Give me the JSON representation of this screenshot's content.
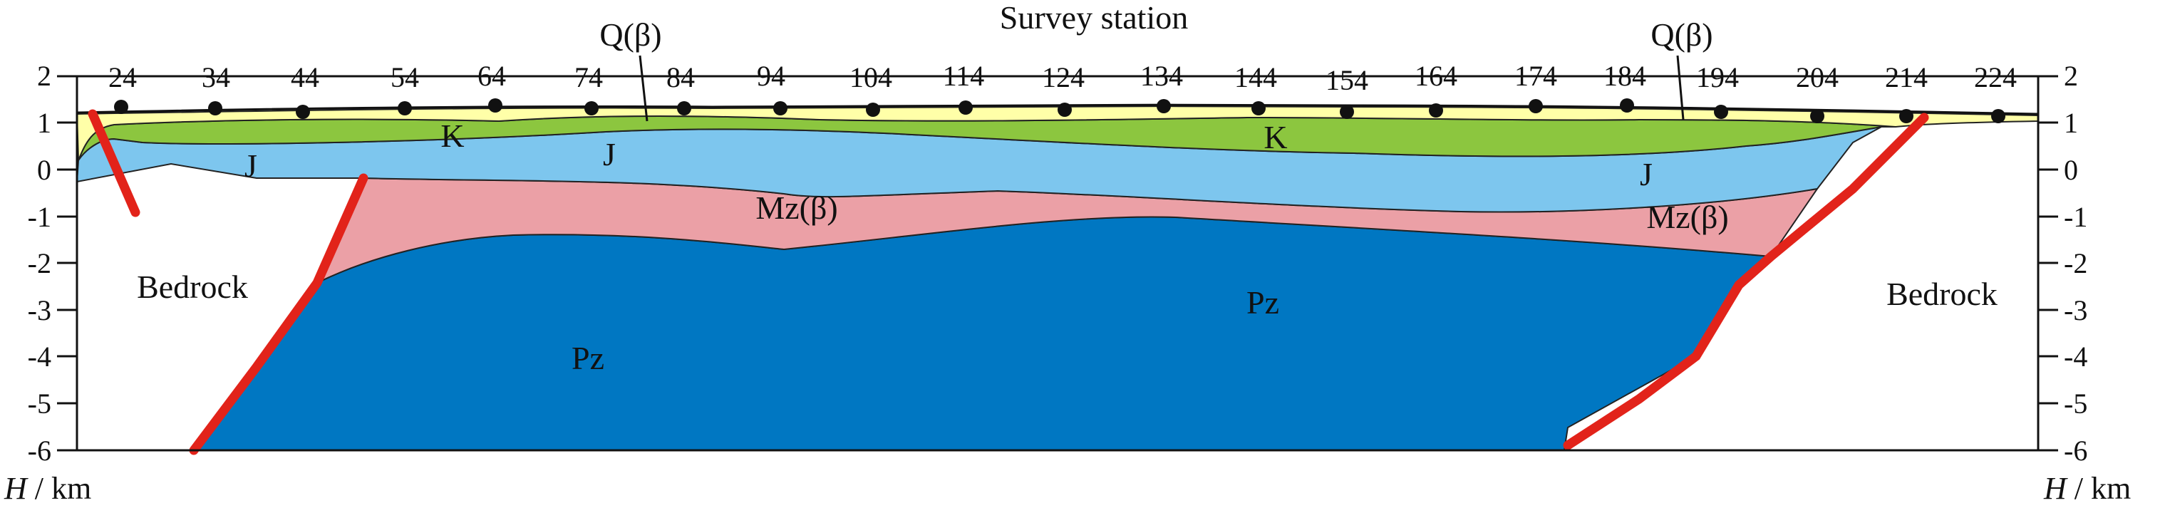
{
  "title": "Survey station",
  "y_axis": {
    "left_label_var": "H",
    "left_label_unit": " / km",
    "right_label_var": "H",
    "right_label_unit": " / km",
    "ticks": [
      "2",
      "1",
      "0",
      "-1",
      "-2",
      "-3",
      "-4",
      "-5",
      "-6"
    ],
    "range": [
      -6,
      2
    ]
  },
  "stations": [
    "24",
    "34",
    "44",
    "54",
    "64",
    "74",
    "84",
    "94",
    "104",
    "114",
    "124",
    "134",
    "144",
    "154",
    "164",
    "174",
    "184",
    "194",
    "204",
    "214",
    "224"
  ],
  "layers": {
    "quaternary": "Q(β)",
    "quaternary_right": "Q(β)",
    "cretaceous_left": "K",
    "cretaceous_right": "K",
    "jurassic_left": "J",
    "jurassic_mid": "J",
    "jurassic_right": "J",
    "mesozoic_mid": "Mz(β)",
    "mesozoic_right": "Mz(β)",
    "paleozoic_left": "Pz",
    "paleozoic_mid": "Pz",
    "bedrock_left": "Bedrock",
    "bedrock_right": "Bedrock"
  },
  "colors": {
    "quaternary": "#ffffa8",
    "cretaceous": "#8cc63f",
    "jurassic": "#7dc6ee",
    "mesozoic": "#eba0a6",
    "paleozoic": "#0077c2",
    "fault": "#e2231a"
  }
}
